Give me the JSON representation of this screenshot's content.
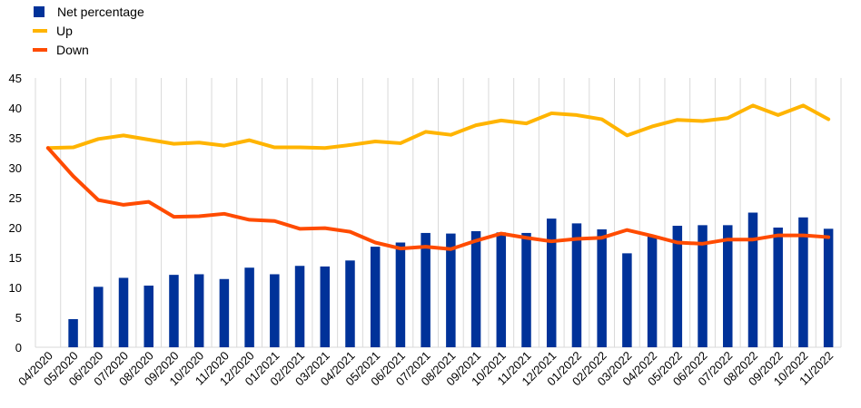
{
  "chart_data": {
    "type": "bar",
    "categories": [
      "04/2020",
      "05/2020",
      "06/2020",
      "07/2020",
      "08/2020",
      "09/2020",
      "10/2020",
      "11/2020",
      "12/2020",
      "01/2021",
      "02/2021",
      "03/2021",
      "04/2021",
      "05/2021",
      "06/2021",
      "07/2021",
      "08/2021",
      "09/2021",
      "10/2021",
      "11/2021",
      "12/2021",
      "01/2022",
      "02/2022",
      "03/2022",
      "04/2022",
      "05/2022",
      "06/2022",
      "07/2022",
      "08/2022",
      "09/2022",
      "10/2022",
      "11/2022"
    ],
    "series": [
      {
        "name": "Net percentage",
        "type": "bar",
        "color": "#003299",
        "values": [
          null,
          4.7,
          10.1,
          11.6,
          10.3,
          12.1,
          12.2,
          11.4,
          13.3,
          12.2,
          13.6,
          13.5,
          14.5,
          16.8,
          17.5,
          19.1,
          19.0,
          19.4,
          19.2,
          19.1,
          21.5,
          20.7,
          19.7,
          15.7,
          18.6,
          20.3,
          20.4,
          20.4,
          22.5,
          20.0,
          21.7,
          19.8
        ]
      },
      {
        "name": "Up",
        "type": "line",
        "color": "#FFB400",
        "values": [
          33.3,
          33.4,
          34.8,
          35.4,
          34.7,
          34.0,
          34.2,
          33.7,
          34.6,
          33.4,
          33.4,
          33.3,
          33.8,
          34.4,
          34.1,
          36.0,
          35.5,
          37.1,
          37.9,
          37.4,
          39.1,
          38.8,
          38.1,
          35.4,
          36.9,
          38.0,
          37.8,
          38.3,
          40.4,
          38.8,
          40.4,
          38.1
        ]
      },
      {
        "name": "Down",
        "type": "line",
        "color": "#FF4B00",
        "values": [
          33.3,
          28.6,
          24.6,
          23.8,
          24.3,
          21.8,
          21.9,
          22.3,
          21.3,
          21.1,
          19.8,
          19.9,
          19.3,
          17.5,
          16.5,
          16.8,
          16.4,
          17.8,
          19.0,
          18.3,
          17.7,
          18.1,
          18.3,
          19.6,
          18.6,
          17.5,
          17.3,
          18.0,
          18.0,
          18.7,
          18.7,
          18.4
        ]
      }
    ],
    "ylim": [
      0,
      45
    ],
    "yticks": [
      "0",
      "5",
      "10",
      "15",
      "20",
      "25",
      "30",
      "35",
      "40",
      "45"
    ],
    "grid": "vertical",
    "legend_position": "top-left",
    "title": "",
    "xlabel": "",
    "ylabel": ""
  }
}
